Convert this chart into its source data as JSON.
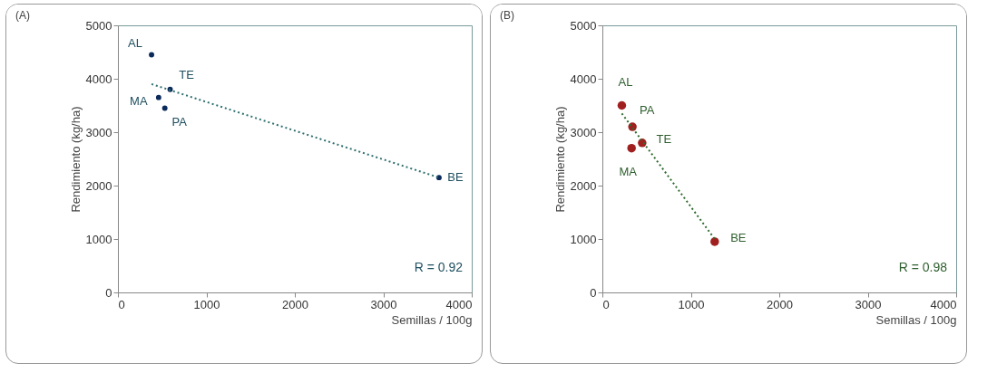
{
  "chart_data": [
    {
      "type": "scatter",
      "title": "(A)",
      "xlabel": "Semillas / 100g",
      "ylabel": "Rendimiento (kg/ha)",
      "xlim": [
        0,
        4000
      ],
      "xticks": [
        0,
        1000,
        2000,
        3000,
        4000
      ],
      "ylim": [
        0,
        5000
      ],
      "yticks": [
        0,
        1000,
        2000,
        3000,
        4000,
        5000
      ],
      "grid": false,
      "series": [
        {
          "color": "#0b2a5a",
          "marker": "circle",
          "x": [
            380,
            590,
            460,
            530,
            3630
          ],
          "values": [
            4450,
            3800,
            3650,
            3450,
            2150
          ]
        },
        {
          "type": "line",
          "color": "#2f6f6f",
          "line_style": "dotted",
          "marker": "none",
          "x": [
            380,
            3630
          ],
          "values": [
            3900,
            2150
          ]
        }
      ],
      "annotations": [
        {
          "text": "AL",
          "x": 380,
          "y": 4450
        },
        {
          "text": "TE",
          "x": 590,
          "y": 3800
        },
        {
          "text": "MA",
          "x": 460,
          "y": 3650
        },
        {
          "text": "PA",
          "x": 530,
          "y": 3450
        },
        {
          "text": "BE",
          "x": 3630,
          "y": 2150
        },
        "R = 0.92"
      ]
    },
    {
      "type": "scatter",
      "title": "(B)",
      "xlabel": "Semillas / 100g",
      "ylabel": "Rendimiento (kg/ha)",
      "xlim": [
        0,
        4000
      ],
      "xticks": [
        0,
        1000,
        2000,
        3000,
        4000
      ],
      "ylim": [
        0,
        5000
      ],
      "yticks": [
        0,
        1000,
        2000,
        3000,
        4000,
        5000
      ],
      "grid": false,
      "series": [
        {
          "color": "#a02020",
          "marker": "circle",
          "x": [
            220,
            340,
            450,
            330,
            1270
          ],
          "values": [
            3500,
            3100,
            2800,
            2700,
            950
          ]
        },
        {
          "type": "line",
          "color": "#2e6b2e",
          "line_style": "dotted",
          "marker": "none",
          "x": [
            220,
            1270
          ],
          "values": [
            3350,
            1000
          ]
        }
      ],
      "annotations": [
        {
          "text": "AL",
          "x": 220,
          "y": 3500
        },
        {
          "text": "PA",
          "x": 340,
          "y": 3100
        },
        {
          "text": "TE",
          "x": 450,
          "y": 2800
        },
        {
          "text": "MA",
          "x": 330,
          "y": 2700
        },
        {
          "text": "BE",
          "x": 1270,
          "y": 950
        },
        "R = 0.98"
      ]
    }
  ]
}
